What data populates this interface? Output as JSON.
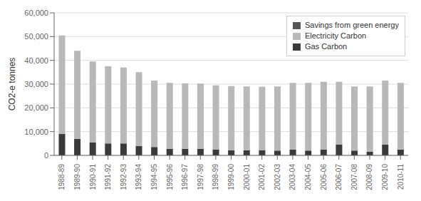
{
  "chart_data": {
    "type": "bar",
    "stacked": true,
    "ylabel": "CO2-e tonnes",
    "categories": [
      "1988-89",
      "1989-90",
      "1990-91",
      "1991-92",
      "1992-93",
      "1993-94",
      "1994-95",
      "1995-96",
      "1996-97",
      "1997-98",
      "1998-99",
      "1999-00",
      "2000-01",
      "2001-02",
      "2002-03",
      "2003-04",
      "2004-05",
      "2005-06",
      "2006-07",
      "2007-08",
      "2008-09",
      "2009-10",
      "2010-11"
    ],
    "series": [
      {
        "name": "Gas Carbon",
        "color": "#3a3a3a",
        "values": [
          9000,
          7000,
          5500,
          5000,
          5000,
          4000,
          3500,
          2800,
          2800,
          2800,
          2500,
          2200,
          2200,
          2200,
          2000,
          2500,
          2000,
          2500,
          4500,
          2000,
          1500,
          4500,
          2500
        ]
      },
      {
        "name": "Electricity Carbon",
        "color": "#b8b8b8",
        "values": [
          41500,
          37000,
          34000,
          32500,
          32000,
          31000,
          28000,
          27700,
          27500,
          27400,
          27000,
          27000,
          26800,
          26700,
          27000,
          28000,
          28500,
          28500,
          26500,
          27000,
          27500,
          27000,
          28000
        ]
      },
      {
        "name": "Savings from green energy",
        "color": "#555555",
        "values": [
          0,
          0,
          0,
          0,
          0,
          0,
          0,
          0,
          0,
          0,
          0,
          0,
          0,
          0,
          0,
          0,
          0,
          0,
          0,
          0,
          0,
          0,
          0
        ]
      }
    ],
    "ylim": [
      0,
      60000
    ],
    "yticks": [
      0,
      {
        "value": 10000,
        "label": "10,000"
      },
      {
        "value": 20000,
        "label": "20,000"
      },
      {
        "value": 30000,
        "label": "30,000"
      },
      {
        "value": 40000,
        "label": "40,000"
      },
      {
        "value": 50000,
        "label": "50,000"
      },
      {
        "value": 60000,
        "label": "60,000"
      }
    ],
    "grid": true,
    "legend": "upper right"
  }
}
